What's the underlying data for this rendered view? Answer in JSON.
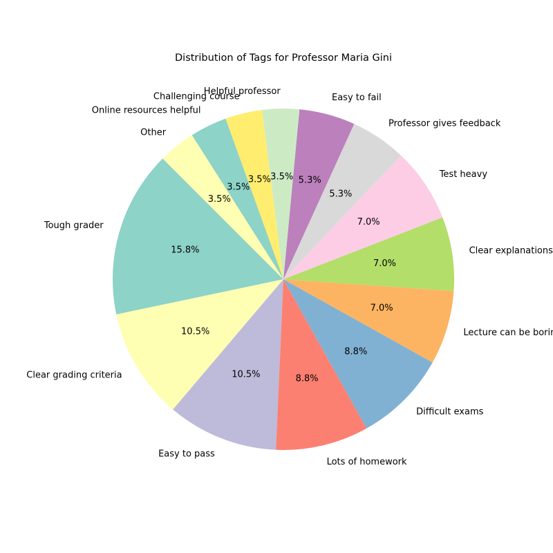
{
  "chart_data": {
    "type": "pie",
    "title": "Distribution of Tags for Professor Maria Gini",
    "start_angle_deg": 135,
    "direction": "counterclockwise",
    "slices": [
      {
        "label": "Tough grader",
        "value": 15.8,
        "pct_label": "15.8%",
        "color": "#8dd3c7"
      },
      {
        "label": "Clear grading criteria",
        "value": 10.5,
        "pct_label": "10.5%",
        "color": "#ffffb3"
      },
      {
        "label": "Easy to pass",
        "value": 10.5,
        "pct_label": "10.5%",
        "color": "#bebada"
      },
      {
        "label": "Lots of homework",
        "value": 8.8,
        "pct_label": "8.8%",
        "color": "#fb8072"
      },
      {
        "label": "Difficult exams",
        "value": 8.8,
        "pct_label": "8.8%",
        "color": "#80b1d3"
      },
      {
        "label": "Lecture can be boring",
        "value": 7.0,
        "pct_label": "7.0%",
        "color": "#fdb462"
      },
      {
        "label": "Clear explanations",
        "value": 7.0,
        "pct_label": "7.0%",
        "color": "#b3de69"
      },
      {
        "label": "Test heavy",
        "value": 7.0,
        "pct_label": "7.0%",
        "color": "#fccde5"
      },
      {
        "label": "Professor gives feedback",
        "value": 5.3,
        "pct_label": "5.3%",
        "color": "#d9d9d9"
      },
      {
        "label": "Easy to fail",
        "value": 5.3,
        "pct_label": "5.3%",
        "color": "#bc80bd"
      },
      {
        "label": "Helpful professor",
        "value": 3.5,
        "pct_label": "3.5%",
        "color": "#ccebc5"
      },
      {
        "label": "Challenging course",
        "value": 3.5,
        "pct_label": "3.5%",
        "color": "#ffed6f"
      },
      {
        "label": "Online resources helpful",
        "value": 3.5,
        "pct_label": "3.5%",
        "color": "#8dd3c7"
      },
      {
        "label": "Other",
        "value": 3.5,
        "pct_label": "3.5%",
        "color": "#ffffb3"
      }
    ]
  }
}
